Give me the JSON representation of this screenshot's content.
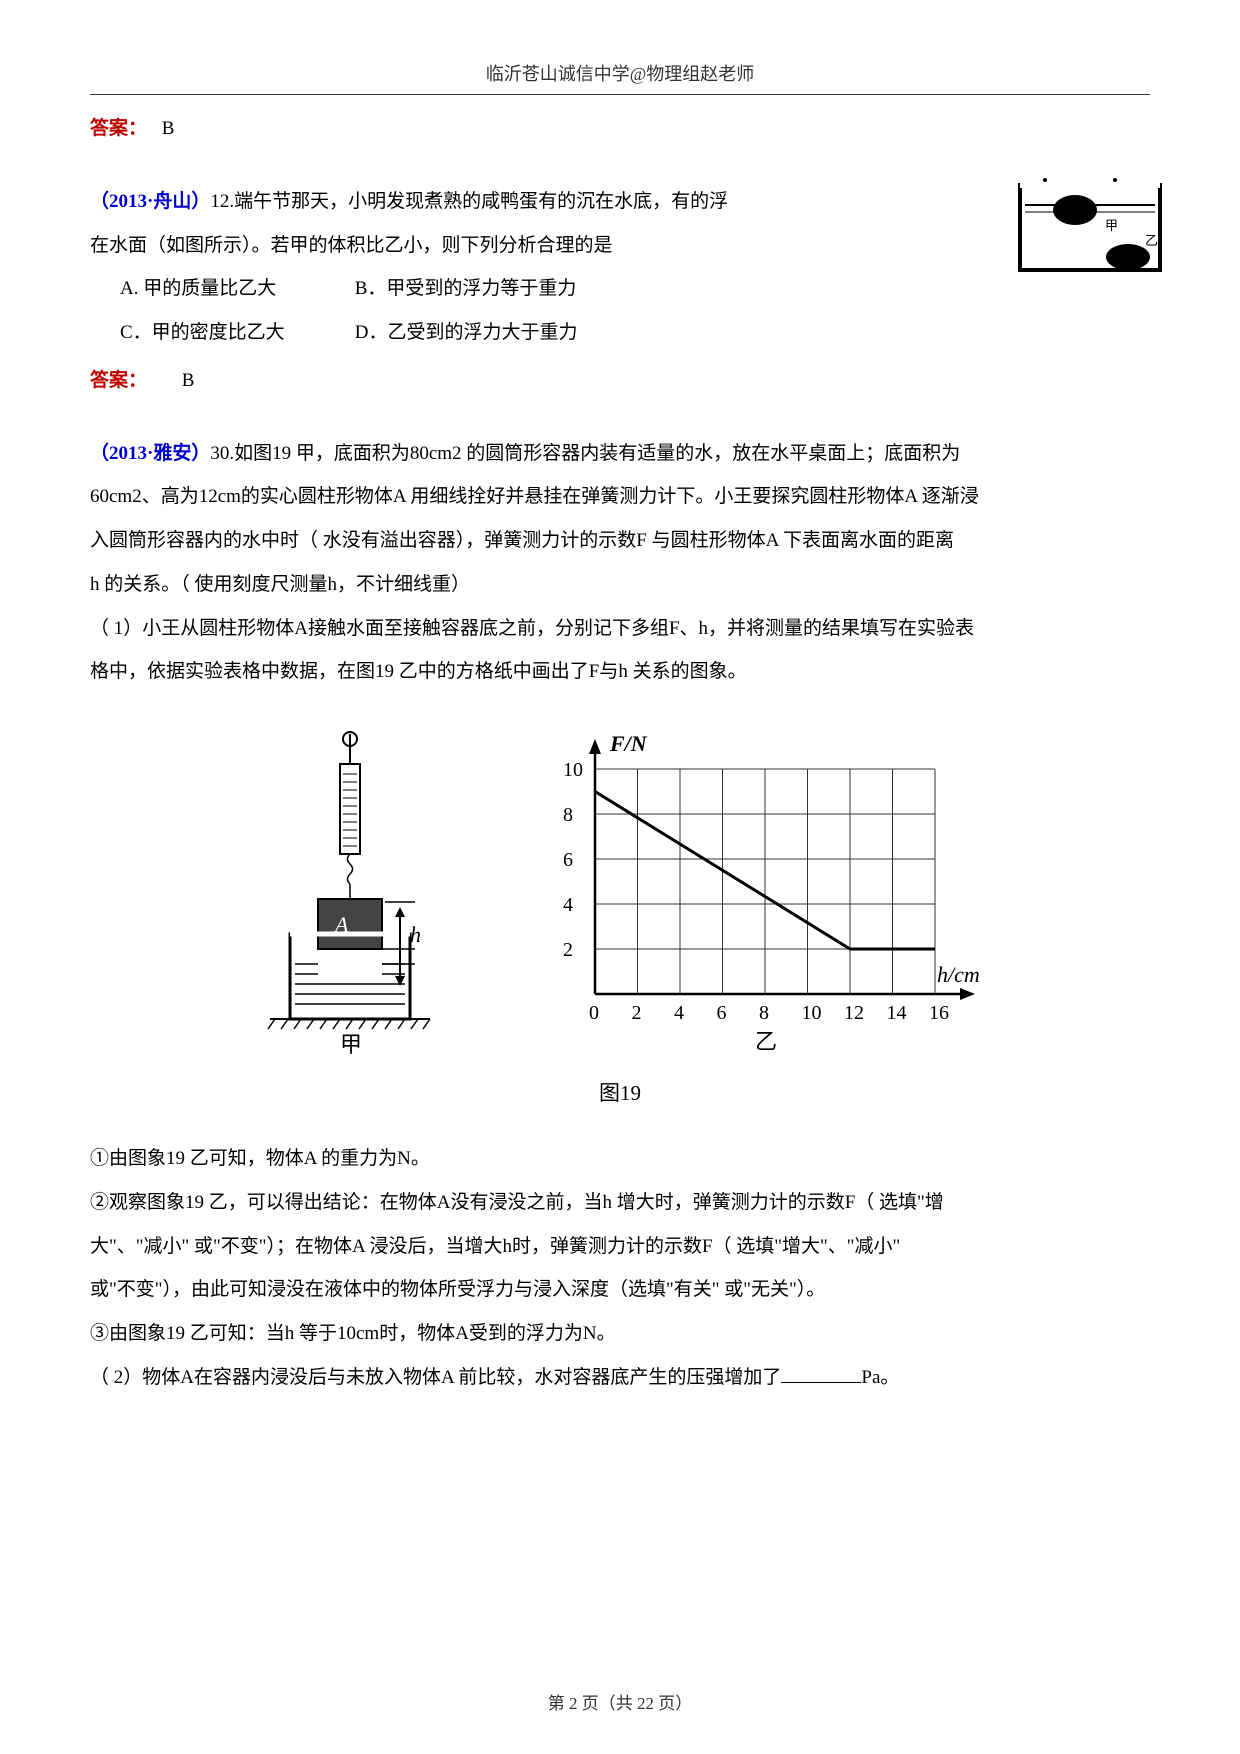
{
  "header": "临沂苍山诚信中学@物理组赵老师",
  "answer1": {
    "label": "答案：",
    "value": "B"
  },
  "q1": {
    "source": "（2013·舟山）",
    "num": "12.",
    "text1": "端午节那天，小明发现煮熟的咸鸭蛋有的沉在水底，有的浮",
    "text2": "在水面（如图所示）。若甲的体积比乙小，则下列分析合理的是",
    "optA": "A. 甲的质量比乙大",
    "optB": "B．甲受到的浮力等于重力",
    "optC": "C．甲的密度比乙大",
    "optD": "D．乙受到的浮力大于重力"
  },
  "answer2": {
    "label": "答案：",
    "value": "B"
  },
  "q2": {
    "source": "（2013·雅安）",
    "num": "30.",
    "p1": "如图19 甲，底面积为80cm2 的圆筒形容器内装有适量的水，放在水平桌面上；底面积为",
    "p2": "60cm2、高为12cm的实心圆柱形物体A 用细线拴好并悬挂在弹簧测力计下。小王要探究圆柱形物体A 逐渐浸",
    "p3": "入圆筒形容器内的水中时（ 水没有溢出容器），弹簧测力计的示数F 与圆柱形物体A 下表面离水面的距离",
    "p4": "h 的关系。（ 使用刻度尺测量h，不计细线重）",
    "p5": "（ 1）小王从圆柱形物体A接触水面至接触容器底之前，分别记下多组F、h，并将测量的结果填写在实验表",
    "p6": "格中，依据实验表格中数据，在图19 乙中的方格纸中画出了F与h 关系的图象。",
    "sub1": "①由图象19 乙可知，物体A 的重力为N。",
    "sub2a": "②观察图象19 乙，可以得出结论：在物体A没有浸没之前，当h 增大时，弹簧测力计的示数F（ 选填\"增",
    "sub2b": "大\"、\"减小\" 或\"不变\"）；在物体A 浸没后，当增大h时，弹簧测力计的示数F（ 选填\"增大\"、\"减小\"",
    "sub2c": "或\"不变\"），由此可知浸没在液体中的物体所受浮力与浸入深度（选填\"有关\" 或\"无关\"）。",
    "sub3": "③由图象19 乙可知：当h 等于10cm时，物体A受到的浮力为N。",
    "p7a": "（ 2）物体A在容器内浸没后与未放入物体A 前比较，水对容器底产生的压强增加了",
    "p7b": "Pa。"
  },
  "figure": {
    "caption": "图19",
    "left_label": "甲",
    "right_label": "乙",
    "a_label": "A",
    "h_label": "h",
    "chart": {
      "y_label": "F/N",
      "x_label": "h/cm",
      "x_ticks": [
        "0",
        "2",
        "4",
        "6",
        "8",
        "10",
        "12",
        "14",
        "16"
      ],
      "y_ticks": [
        "2",
        "4",
        "6",
        "8",
        "10"
      ],
      "line_points": [
        [
          0,
          9
        ],
        [
          12,
          2
        ],
        [
          16,
          2
        ]
      ],
      "xlim": [
        0,
        16
      ],
      "ylim": [
        0,
        10
      ],
      "grid_color": "#333333",
      "line_color": "#000000",
      "background": "#ffffff"
    }
  },
  "footer": {
    "page": "第 2 页（共 22 页）"
  }
}
